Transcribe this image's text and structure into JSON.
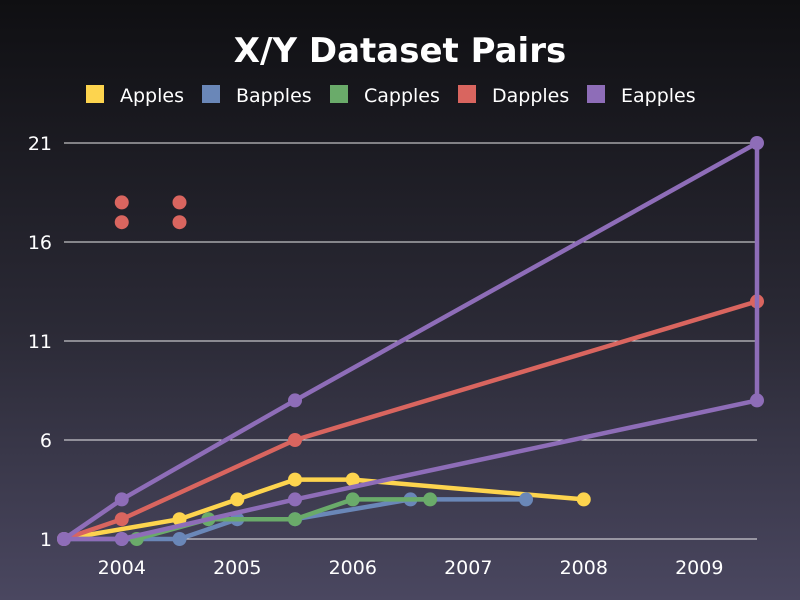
{
  "chart_data": {
    "type": "line",
    "title": "X/Y Dataset Pairs",
    "xlabel": "",
    "ylabel": "",
    "grid": true,
    "legend_position": "top",
    "xlim": [
      2003.5,
      2009.5
    ],
    "ylim": [
      1,
      21
    ],
    "x_ticks": [
      "2004",
      "2005",
      "2006",
      "2007",
      "2008",
      "2009"
    ],
    "x_tick_values": [
      2004,
      2005,
      2006,
      2007,
      2008,
      2009
    ],
    "y_ticks": [
      "1",
      "6",
      "11",
      "16",
      "21"
    ],
    "y_tick_values": [
      1,
      6,
      11,
      16,
      21
    ],
    "series": [
      {
        "name": "Apples",
        "color": "#fdd44e",
        "style": "line",
        "points": [
          [
            2003.5,
            1
          ],
          [
            2004.5,
            2
          ],
          [
            2005,
            3
          ],
          [
            2005.5,
            4
          ],
          [
            2006,
            4
          ],
          [
            2008,
            3
          ]
        ]
      },
      {
        "name": "Bapples",
        "color": "#6a87b8",
        "style": "line",
        "points": [
          [
            2003.5,
            1
          ],
          [
            2004,
            1
          ],
          [
            2004.5,
            1
          ],
          [
            2005,
            2
          ],
          [
            2005.5,
            2
          ],
          [
            2006.5,
            3
          ],
          [
            2007.5,
            3
          ]
        ]
      },
      {
        "name": "Capples",
        "color": "#6aab6a",
        "style": "line",
        "points": [
          [
            2004.13,
            1
          ],
          [
            2004.75,
            2
          ],
          [
            2005.5,
            2
          ],
          [
            2006,
            3
          ],
          [
            2006.67,
            3
          ]
        ]
      },
      {
        "name": "Dapples",
        "color": "#d9655f",
        "style": "line",
        "points": [
          [
            2003.5,
            1
          ],
          [
            2004,
            2
          ],
          [
            2005.5,
            6
          ],
          [
            2009.5,
            13
          ]
        ]
      },
      {
        "name": "Dapples-scatter",
        "color": "#d9655f",
        "style": "scatter",
        "points": [
          [
            2004,
            18
          ],
          [
            2004,
            17
          ],
          [
            2004.5,
            18
          ],
          [
            2004.5,
            17
          ]
        ]
      },
      {
        "name": "Eapples",
        "color": "#8e6db8",
        "style": "line",
        "points": [
          [
            2003.5,
            1
          ],
          [
            2004,
            3
          ],
          [
            2005.5,
            8
          ],
          [
            2009.5,
            21
          ],
          [
            2009.5,
            8
          ],
          [
            2005.5,
            3
          ],
          [
            2004,
            1
          ],
          [
            2003.5,
            1
          ]
        ]
      }
    ],
    "legend": [
      "Apples",
      "Bapples",
      "Capples",
      "Dapples",
      "Eapples"
    ]
  }
}
